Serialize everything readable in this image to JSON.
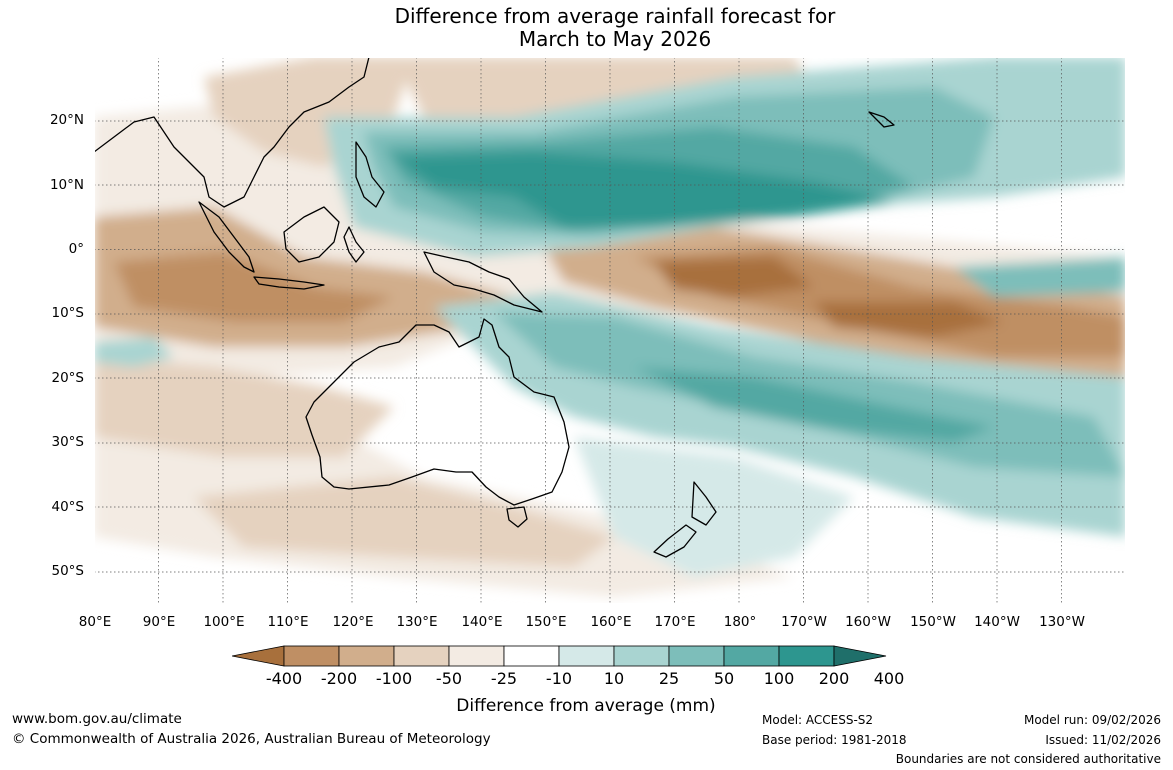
{
  "title": {
    "line1": "Difference from average rainfall forecast for",
    "line2": "March to May 2026"
  },
  "map": {
    "lat_labels": [
      "20°N",
      "10°N",
      "0°",
      "10°S",
      "20°S",
      "30°S",
      "40°S",
      "50°S"
    ],
    "lon_labels": [
      "80°E",
      "90°E",
      "100°E",
      "110°E",
      "120°E",
      "130°E",
      "140°E",
      "150°E",
      "160°E",
      "170°E",
      "180°",
      "170°W",
      "160°W",
      "150°W",
      "140°W",
      "130°W"
    ]
  },
  "legend": {
    "title": "Difference from average (mm)",
    "ticks": [
      "-400",
      "-200",
      "-100",
      "-50",
      "-25",
      "-10",
      "10",
      "25",
      "50",
      "100",
      "200",
      "400"
    ],
    "colors": [
      "#a8703c",
      "#bf8f64",
      "#d1ae8c",
      "#e5d2bf",
      "#f3ebe3",
      "#ffffff",
      "#d5e9e8",
      "#a9d4d1",
      "#7dbeba",
      "#53a8a3",
      "#2d968f",
      "#1f6f6a"
    ]
  },
  "footer": {
    "website": "www.bom.gov.au/climate",
    "copyright": "© Commonwealth of Australia 2026, Australian Bureau of Meteorology",
    "model": "Model: ACCESS-S2",
    "base_period": "Base period: 1981-2018",
    "model_run": "Model run: 09/02/2026",
    "issued": "Issued: 11/02/2026",
    "disclaimer": "Boundaries are not considered authoritative"
  }
}
